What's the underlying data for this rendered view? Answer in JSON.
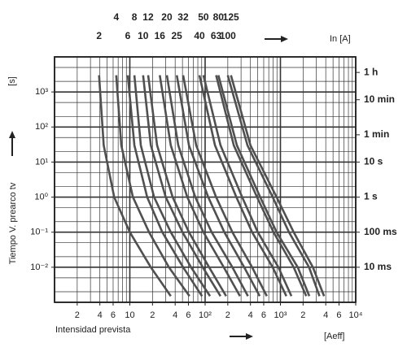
{
  "chart_data": {
    "type": "line",
    "x_label": "Intensidad prevista",
    "x_unit": "[Aeff]",
    "y_label": "Tiempo V. prearco tv",
    "y_unit": "[s]",
    "top_label": "In [A]",
    "log_x": true,
    "log_y": true,
    "grid": true,
    "color": "#505050",
    "xlim": [
      1,
      10000
    ],
    "ylim": [
      0.001,
      10000
    ],
    "xticks": [
      2,
      4,
      6,
      10,
      {
        "value": 20,
        "label": "2"
      },
      {
        "value": 40,
        "label": "4"
      },
      {
        "value": 60,
        "label": "6"
      },
      {
        "value": 100,
        "label": "10²"
      },
      {
        "value": 200,
        "label": "2"
      },
      {
        "value": 400,
        "label": "4"
      },
      {
        "value": 600,
        "label": "6"
      },
      {
        "value": 1000,
        "label": "10³"
      },
      {
        "value": 2000,
        "label": "2"
      },
      {
        "value": 4000,
        "label": "4"
      },
      {
        "value": 6000,
        "label": "6"
      },
      {
        "value": 10000,
        "label": "10⁴"
      }
    ],
    "yticks": [
      {
        "value": 0.01,
        "label": "10⁻²"
      },
      {
        "value": 0.1,
        "label": "10⁻¹"
      },
      {
        "value": 1,
        "label": "10⁰"
      },
      {
        "value": 10,
        "label": "10¹"
      },
      {
        "value": 100,
        "label": "10²"
      },
      {
        "value": 1000,
        "label": "10³"
      }
    ],
    "y2lim": [
      0.001,
      10000
    ],
    "y2ticks": [
      {
        "value": 3600,
        "label": "1 h"
      },
      {
        "value": 600,
        "label": "10 min"
      },
      {
        "value": 60,
        "label": "1 min"
      },
      {
        "value": 10,
        "label": "10 s"
      },
      {
        "value": 1,
        "label": "1 s"
      },
      {
        "value": 0.1,
        "label": "100 ms"
      },
      {
        "value": 0.01,
        "label": "10 ms"
      }
    ],
    "xgrid": [
      1,
      2,
      3,
      4,
      5,
      6,
      7,
      8,
      9,
      10,
      20,
      30,
      40,
      50,
      60,
      70,
      80,
      90,
      100,
      200,
      300,
      400,
      500,
      600,
      700,
      800,
      900,
      1000,
      2000,
      3000,
      4000,
      5000,
      6000,
      7000,
      8000,
      9000,
      10000
    ],
    "ygrid": [
      0.001,
      0.002,
      0.005,
      0.01,
      0.02,
      0.05,
      0.1,
      0.2,
      0.5,
      1,
      2,
      5,
      10,
      20,
      50,
      100,
      200,
      500,
      1000,
      2000,
      5000,
      10000
    ],
    "series": [
      {
        "name": "2",
        "x": [
          3.9,
          4.5,
          6.2,
          10,
          19,
          35
        ],
        "values": [
          3000,
          30,
          1,
          0.1,
          0.01,
          0.0015
        ]
      },
      {
        "name": "4",
        "x": [
          6.6,
          7.7,
          11,
          18,
          33,
          62
        ],
        "values": [
          3000,
          30,
          1,
          0.1,
          0.01,
          0.0015
        ]
      },
      {
        "name": "6",
        "x": [
          9.4,
          11.5,
          17,
          27,
          51,
          91
        ],
        "values": [
          3000,
          30,
          1,
          0.1,
          0.01,
          0.0015
        ]
      },
      {
        "name": "8",
        "x": [
          11.5,
          14,
          21,
          35,
          65,
          116
        ],
        "values": [
          3000,
          30,
          1,
          0.1,
          0.01,
          0.0015
        ]
      },
      {
        "name": "10",
        "x": [
          15,
          19,
          30,
          50,
          93,
          160
        ],
        "values": [
          3000,
          30,
          1,
          0.1,
          0.01,
          0.0015
        ]
      },
      {
        "name": "12",
        "x": [
          17.5,
          23,
          37,
          61,
          113,
          190
        ],
        "values": [
          3000,
          30,
          1,
          0.1,
          0.01,
          0.0015
        ]
      },
      {
        "name": "16",
        "x": [
          25,
          35,
          58,
          95,
          177,
          290
        ],
        "values": [
          3000,
          30,
          1,
          0.1,
          0.01,
          0.0015
        ]
      },
      {
        "name": "20",
        "x": [
          31,
          44,
          74,
          122,
          230,
          370
        ],
        "values": [
          3000,
          30,
          1,
          0.1,
          0.01,
          0.0015
        ]
      },
      {
        "name": "25",
        "x": [
          42,
          61,
          110,
          180,
          330,
          530
        ],
        "values": [
          3000,
          30,
          1,
          0.1,
          0.01,
          0.0015
        ]
      },
      {
        "name": "32",
        "x": [
          51,
          76,
          140,
          230,
          420,
          660
        ],
        "values": [
          3000,
          30,
          1,
          0.1,
          0.01,
          0.0015
        ]
      },
      {
        "name": "40",
        "x": [
          84,
          135,
          260,
          420,
          790,
          1200
        ],
        "values": [
          3000,
          30,
          1,
          0.1,
          0.01,
          0.0015
        ]
      },
      {
        "name": "50",
        "x": [
          95,
          160,
          310,
          500,
          940,
          1400
        ],
        "values": [
          3000,
          30,
          1,
          0.1,
          0.01,
          0.0015
        ]
      },
      {
        "name": "63",
        "x": [
          140,
          240,
          490,
          810,
          1500,
          2200
        ],
        "values": [
          3000,
          30,
          1,
          0.1,
          0.01,
          0.0015
        ]
      },
      {
        "name": "80",
        "x": [
          150,
          264,
          540,
          890,
          1700,
          2420
        ],
        "values": [
          3000,
          30,
          1,
          0.1,
          0.01,
          0.0015
        ]
      },
      {
        "name": "100",
        "x": [
          200,
          365,
          790,
          1300,
          2400,
          3300
        ],
        "values": [
          3000,
          30,
          1,
          0.1,
          0.01,
          0.0015
        ]
      },
      {
        "name": "125",
        "x": [
          220,
          400,
          890,
          1500,
          2700,
          3800
        ],
        "values": [
          3000,
          30,
          1,
          0.1,
          0.01,
          0.0015
        ]
      }
    ]
  }
}
